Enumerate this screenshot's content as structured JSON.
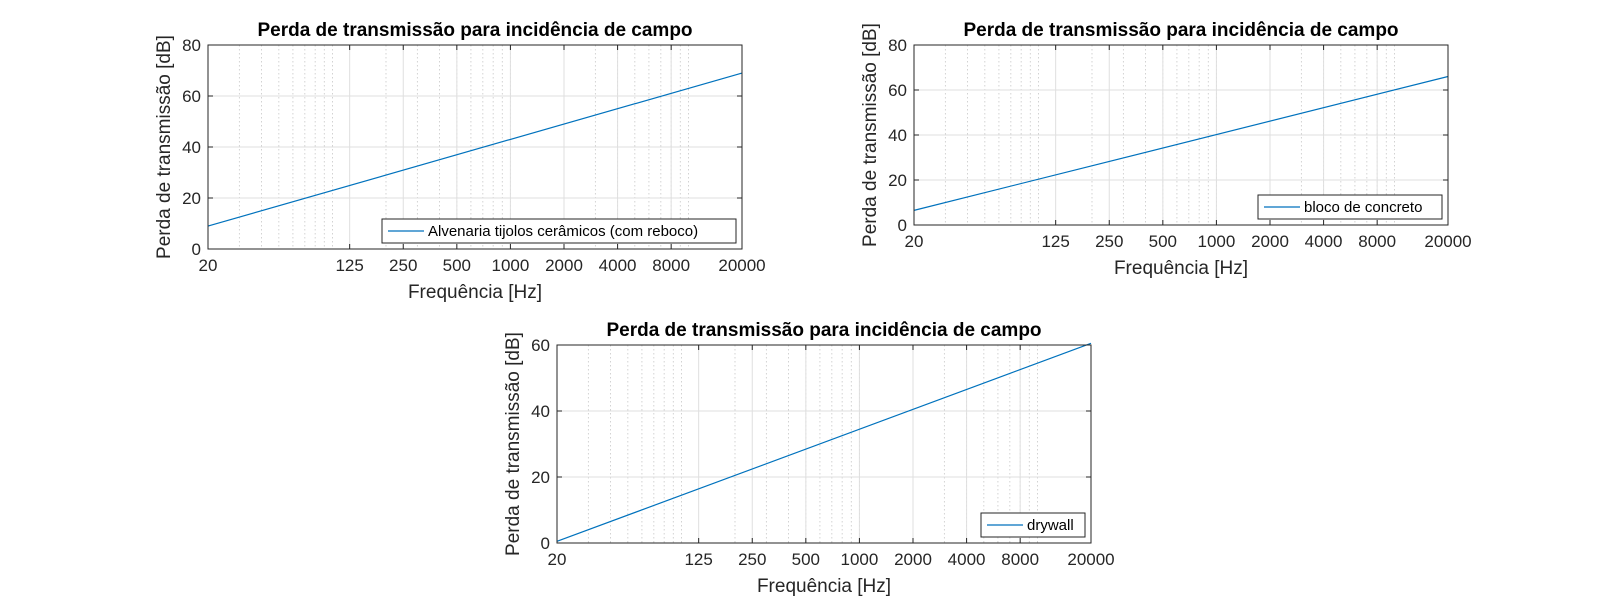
{
  "colors": {
    "series": "#0072BD",
    "axes": "#262626",
    "grid": "#DFDFDF",
    "minor_grid": "#C8C8C8"
  },
  "chart_data": [
    {
      "type": "line",
      "title": "Perda de transmissão para incidência de campo",
      "xlabel": "Frequência [Hz]",
      "ylabel": "Perda de transmissão [dB]",
      "xscale": "log",
      "xlim": [
        20,
        20000
      ],
      "ylim": [
        0,
        80
      ],
      "xticks": [
        20,
        125,
        250,
        500,
        1000,
        2000,
        4000,
        8000,
        20000
      ],
      "xtick_labels": [
        "20",
        "125",
        "250",
        "500",
        "1000",
        "2000",
        "4000",
        "8000",
        "20000"
      ],
      "yticks": [
        0,
        20,
        40,
        60,
        80
      ],
      "ytick_labels": [
        "0",
        "20",
        "40",
        "60",
        "80"
      ],
      "grid": true,
      "minor_grid": true,
      "legend": "bottom-right",
      "series": [
        {
          "name": "Alvenaria tijolos cerâmicos (com reboco)",
          "x": [
            20,
            20000
          ],
          "y": [
            9,
            69
          ]
        }
      ]
    },
    {
      "type": "line",
      "title": "Perda de transmissão para incidência de campo",
      "xlabel": "Frequência [Hz]",
      "ylabel": "Perda de transmissão [dB]",
      "xscale": "log",
      "xlim": [
        20,
        20000
      ],
      "ylim": [
        0,
        80
      ],
      "xticks": [
        20,
        125,
        250,
        500,
        1000,
        2000,
        4000,
        8000,
        20000
      ],
      "xtick_labels": [
        "20",
        "125",
        "250",
        "500",
        "1000",
        "2000",
        "4000",
        "8000",
        "20000"
      ],
      "yticks": [
        0,
        20,
        40,
        60,
        80
      ],
      "ytick_labels": [
        "0",
        "20",
        "40",
        "60",
        "80"
      ],
      "grid": true,
      "minor_grid": true,
      "legend": "bottom-right",
      "series": [
        {
          "name": "bloco de concreto",
          "x": [
            20,
            20000
          ],
          "y": [
            6.5,
            66
          ]
        }
      ]
    },
    {
      "type": "line",
      "title": "Perda de transmissão para incidência de campo",
      "xlabel": "Frequência [Hz]",
      "ylabel": "Perda de transmissão [dB]",
      "xscale": "log",
      "xlim": [
        20,
        20000
      ],
      "ylim": [
        0,
        60
      ],
      "xticks": [
        20,
        125,
        250,
        500,
        1000,
        2000,
        4000,
        8000,
        20000
      ],
      "xtick_labels": [
        "20",
        "125",
        "250",
        "500",
        "1000",
        "2000",
        "4000",
        "8000",
        "20000"
      ],
      "yticks": [
        0,
        20,
        40,
        60
      ],
      "ytick_labels": [
        "0",
        "20",
        "40",
        "60"
      ],
      "grid": true,
      "minor_grid": true,
      "legend": "bottom-right",
      "series": [
        {
          "name": "drywall",
          "x": [
            20,
            20000
          ],
          "y": [
            0.5,
            60.5
          ]
        }
      ]
    }
  ]
}
